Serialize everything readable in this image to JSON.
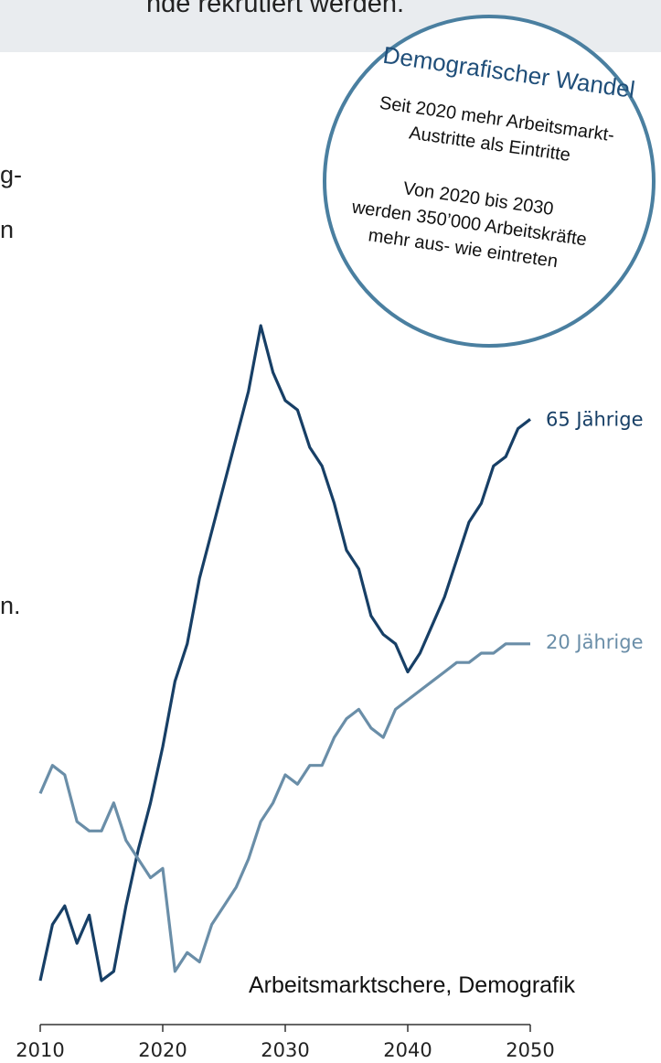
{
  "banner": {
    "text": "nde rekrutiert werden."
  },
  "left_fragments": {
    "line1": "g-",
    "line2": "n",
    "line3": "n."
  },
  "callout": {
    "title": "Demografischer Wandel",
    "line1": "Seit 2020 mehr Arbeitsmarkt-",
    "line2": "Austritte als Eintritte",
    "line3": "Von 2020 bis 2030",
    "line4": "werden 350’000 Arbeitskräfte",
    "line5": "mehr aus- wie eintreten",
    "border_color": "#4a7fa0",
    "title_color": "#1f4e79"
  },
  "source_note": "Arbeitsmarktschere, Demografik",
  "chart_data": {
    "type": "line",
    "xlim": [
      2010,
      2050
    ],
    "x_ticks": [
      2010,
      2020,
      2030,
      2040,
      2050
    ],
    "x_tick_labels": [
      "2010",
      "2020",
      "2030",
      "2040",
      "2050"
    ],
    "grid": false,
    "series": [
      {
        "name": "65 Jährige",
        "color": "#173f66",
        "x": [
          2010,
          2011,
          2012,
          2013,
          2014,
          2015,
          2016,
          2017,
          2018,
          2019,
          2020,
          2021,
          2022,
          2023,
          2024,
          2025,
          2026,
          2027,
          2028,
          2029,
          2030,
          2031,
          2032,
          2033,
          2034,
          2035,
          2036,
          2037,
          2038,
          2039,
          2040,
          2041,
          2042,
          2043,
          2044,
          2045,
          2046,
          2047,
          2048,
          2049,
          2050
        ],
        "y": [
          30,
          36,
          38,
          34,
          37,
          30,
          31,
          38,
          44,
          49,
          55,
          62,
          66,
          73,
          78,
          83,
          88,
          93,
          100,
          95,
          92,
          91,
          87,
          85,
          81,
          76,
          74,
          69,
          67,
          66,
          63,
          65,
          68,
          71,
          75,
          79,
          81,
          85,
          86,
          89,
          90
        ]
      },
      {
        "name": "20 Jährige",
        "color": "#6a8ea8",
        "x": [
          2010,
          2011,
          2012,
          2013,
          2014,
          2015,
          2016,
          2017,
          2018,
          2019,
          2020,
          2021,
          2022,
          2023,
          2024,
          2025,
          2026,
          2027,
          2028,
          2029,
          2030,
          2031,
          2032,
          2033,
          2034,
          2035,
          2036,
          2037,
          2038,
          2039,
          2040,
          2041,
          2042,
          2043,
          2044,
          2045,
          2046,
          2047,
          2048,
          2049,
          2050
        ],
        "y": [
          50,
          53,
          52,
          47,
          46,
          46,
          49,
          45,
          43,
          41,
          42,
          31,
          33,
          32,
          36,
          38,
          40,
          43,
          47,
          49,
          52,
          51,
          53,
          53,
          56,
          58,
          59,
          57,
          56,
          59,
          60,
          61,
          62,
          63,
          64,
          64,
          65,
          65,
          66,
          66,
          66
        ]
      }
    ]
  }
}
